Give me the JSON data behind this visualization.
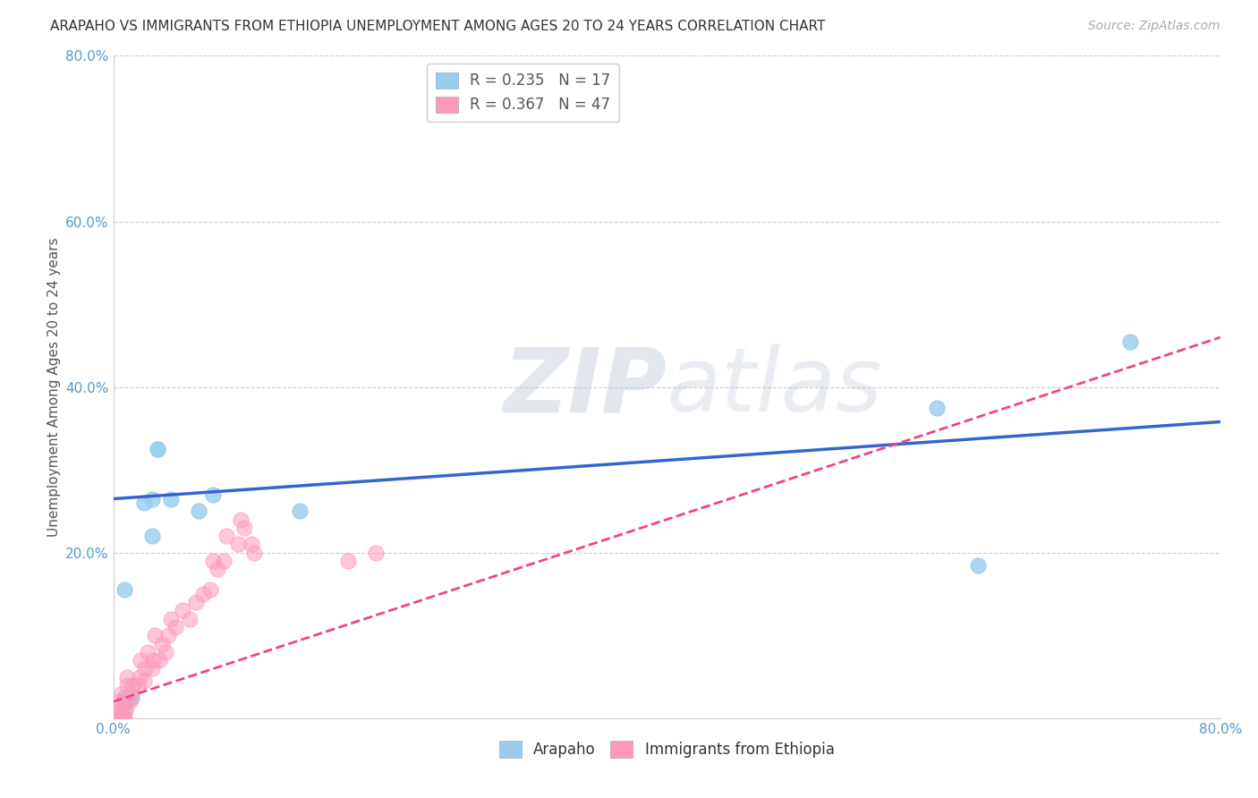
{
  "title": "ARAPAHO VS IMMIGRANTS FROM ETHIOPIA UNEMPLOYMENT AMONG AGES 20 TO 24 YEARS CORRELATION CHART",
  "source": "Source: ZipAtlas.com",
  "ylabel": "Unemployment Among Ages 20 to 24 years",
  "xlim": [
    0.0,
    0.8
  ],
  "ylim": [
    0.0,
    0.8
  ],
  "xticks": [
    0.0,
    0.2,
    0.4,
    0.6,
    0.8
  ],
  "yticks": [
    0.0,
    0.2,
    0.4,
    0.6,
    0.8
  ],
  "xticklabels": [
    "0.0%",
    "",
    "",
    "",
    ""
  ],
  "xticklabels_right": "80.0%",
  "yticklabels": [
    "",
    "20.0%",
    "40.0%",
    "60.0%",
    "80.0%"
  ],
  "arapaho_color": "#99ccee",
  "ethiopia_color": "#ff99bb",
  "trendline_arapaho_color": "#3366cc",
  "trendline_ethiopia_color": "#ee4488",
  "legend_R_arapaho": "R = 0.235",
  "legend_N_arapaho": "N = 17",
  "legend_R_ethiopia": "R = 0.367",
  "legend_N_ethiopia": "N = 47",
  "arapaho_trendline_x0": 0.0,
  "arapaho_trendline_y0": 0.265,
  "arapaho_trendline_x1": 0.8,
  "arapaho_trendline_y1": 0.358,
  "ethiopia_trendline_x0": 0.0,
  "ethiopia_trendline_y0": 0.02,
  "ethiopia_trendline_x1": 0.8,
  "ethiopia_trendline_y1": 0.46,
  "arapaho_x": [
    0.008,
    0.008,
    0.008,
    0.008,
    0.013,
    0.022,
    0.028,
    0.032,
    0.032,
    0.028,
    0.042,
    0.062,
    0.072,
    0.135,
    0.595,
    0.625,
    0.735
  ],
  "arapaho_y": [
    0.01,
    0.02,
    0.025,
    0.155,
    0.025,
    0.26,
    0.22,
    0.325,
    0.325,
    0.265,
    0.265,
    0.25,
    0.27,
    0.25,
    0.375,
    0.185,
    0.455
  ],
  "ethiopia_x": [
    0.001,
    0.002,
    0.004,
    0.004,
    0.005,
    0.005,
    0.006,
    0.008,
    0.008,
    0.009,
    0.009,
    0.01,
    0.01,
    0.012,
    0.013,
    0.014,
    0.018,
    0.019,
    0.02,
    0.022,
    0.023,
    0.025,
    0.028,
    0.029,
    0.03,
    0.033,
    0.035,
    0.038,
    0.04,
    0.042,
    0.045,
    0.05,
    0.055,
    0.06,
    0.065,
    0.07,
    0.072,
    0.075,
    0.08,
    0.082,
    0.09,
    0.092,
    0.095,
    0.1,
    0.102,
    0.17,
    0.19
  ],
  "ethiopia_y": [
    0.0,
    0.0,
    0.0,
    0.01,
    0.01,
    0.02,
    0.03,
    0.0,
    0.0,
    0.01,
    0.02,
    0.04,
    0.05,
    0.02,
    0.03,
    0.04,
    0.04,
    0.05,
    0.07,
    0.045,
    0.06,
    0.08,
    0.06,
    0.07,
    0.1,
    0.07,
    0.09,
    0.08,
    0.1,
    0.12,
    0.11,
    0.13,
    0.12,
    0.14,
    0.15,
    0.155,
    0.19,
    0.18,
    0.19,
    0.22,
    0.21,
    0.24,
    0.23,
    0.21,
    0.2,
    0.19,
    0.2
  ],
  "background_color": "#ffffff",
  "grid_color": "#cccccc",
  "watermark_zip": "ZIP",
  "watermark_atlas": "atlas",
  "title_fontsize": 11,
  "axis_label_fontsize": 11,
  "tick_fontsize": 11,
  "legend_fontsize": 12,
  "source_fontsize": 10
}
